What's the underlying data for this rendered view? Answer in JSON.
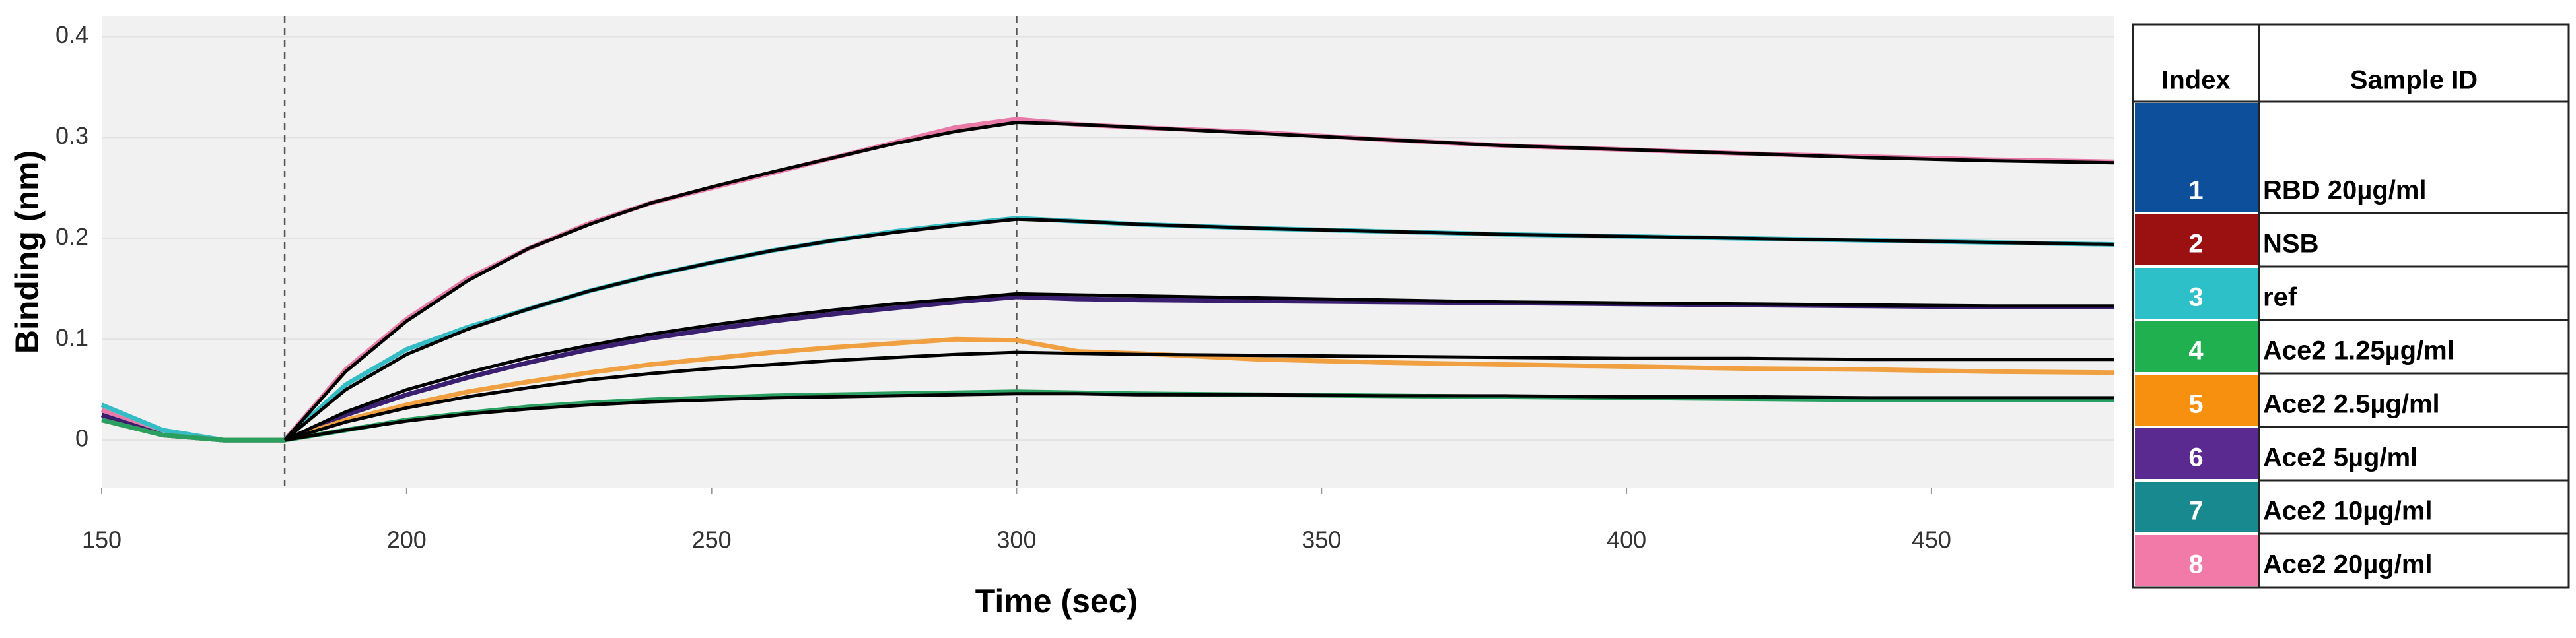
{
  "chart_data": {
    "type": "line",
    "x_label": "Time (sec)",
    "y_label": "Binding (nm)",
    "x": [
      150,
      160,
      170,
      180,
      190,
      200,
      210,
      220,
      230,
      240,
      250,
      260,
      270,
      280,
      290,
      300,
      310,
      320,
      340,
      360,
      380,
      400,
      420,
      440,
      460,
      480
    ],
    "xlim": [
      150,
      480
    ],
    "xticks": [
      150,
      200,
      250,
      300,
      350,
      400,
      450
    ],
    "ylim": [
      -0.047,
      0.42
    ],
    "yticks": [
      0,
      0.1,
      0.2,
      0.3,
      0.4
    ],
    "grid": true,
    "x_markers": [
      180,
      300
    ],
    "series": [
      {
        "color": "#e87aa8",
        "values": [
          0.03,
          0.005,
          0,
          0,
          0.07,
          0.12,
          0.16,
          0.19,
          0.215,
          0.235,
          0.25,
          0.265,
          0.28,
          0.295,
          0.31,
          0.318,
          0.313,
          0.31,
          0.305,
          0.298,
          0.292,
          0.288,
          0.284,
          0.281,
          0.278,
          0.276
        ]
      },
      {
        "color": "#35bcc4",
        "values": [
          0.035,
          0.01,
          0,
          0,
          0.055,
          0.09,
          0.112,
          0.13,
          0.148,
          0.163,
          0.176,
          0.188,
          0.198,
          0.207,
          0.214,
          0.22,
          0.217,
          0.214,
          0.21,
          0.207,
          0.204,
          0.202,
          0.2,
          0.198,
          0.196,
          0.194
        ]
      },
      {
        "color": "#3a1f70",
        "values": [
          0.025,
          0.005,
          0,
          0,
          0.025,
          0.045,
          0.062,
          0.077,
          0.09,
          0.101,
          0.11,
          0.118,
          0.125,
          0.131,
          0.137,
          0.142,
          0.14,
          0.139,
          0.138,
          0.137,
          0.136,
          0.135,
          0.134,
          0.133,
          0.132,
          0.132
        ]
      },
      {
        "color": "#f0a040",
        "values": [
          0.02,
          0.005,
          0,
          0,
          0.02,
          0.035,
          0.048,
          0.058,
          0.067,
          0.075,
          0.081,
          0.087,
          0.092,
          0.096,
          0.1,
          0.099,
          0.088,
          0.086,
          0.08,
          0.077,
          0.075,
          0.073,
          0.071,
          0.07,
          0.068,
          0.067
        ]
      },
      {
        "color": "#2aa060",
        "values": [
          0.02,
          0.005,
          0,
          0,
          0.01,
          0.02,
          0.027,
          0.033,
          0.037,
          0.04,
          0.042,
          0.044,
          0.045,
          0.046,
          0.047,
          0.048,
          0.047,
          0.046,
          0.045,
          0.044,
          0.043,
          0.042,
          0.041,
          0.04,
          0.04,
          0.04
        ]
      },
      {
        "color": "#000000",
        "values": [
          null,
          null,
          null,
          0,
          0.068,
          0.118,
          0.158,
          0.19,
          0.214,
          0.235,
          0.251,
          0.266,
          0.28,
          0.294,
          0.306,
          0.315,
          0.313,
          0.31,
          0.304,
          0.298,
          0.292,
          0.288,
          0.284,
          0.28,
          0.277,
          0.275
        ]
      },
      {
        "color": "#000000",
        "values": [
          null,
          null,
          null,
          0,
          0.05,
          0.085,
          0.11,
          0.13,
          0.148,
          0.163,
          0.176,
          0.188,
          0.198,
          0.206,
          0.213,
          0.219,
          0.217,
          0.214,
          0.21,
          0.207,
          0.204,
          0.202,
          0.2,
          0.198,
          0.196,
          0.194
        ]
      },
      {
        "color": "#000000",
        "values": [
          null,
          null,
          null,
          0,
          0.028,
          0.05,
          0.067,
          0.082,
          0.094,
          0.105,
          0.114,
          0.122,
          0.129,
          0.135,
          0.14,
          0.145,
          0.144,
          0.143,
          0.141,
          0.139,
          0.137,
          0.136,
          0.135,
          0.134,
          0.133,
          0.133
        ]
      },
      {
        "color": "#000000",
        "values": [
          null,
          null,
          null,
          0,
          0.018,
          0.032,
          0.043,
          0.052,
          0.06,
          0.066,
          0.071,
          0.075,
          0.079,
          0.082,
          0.085,
          0.087,
          0.086,
          0.085,
          0.084,
          0.083,
          0.082,
          0.081,
          0.081,
          0.08,
          0.08,
          0.08
        ]
      },
      {
        "color": "#000000",
        "values": [
          null,
          null,
          null,
          0,
          0.01,
          0.019,
          0.026,
          0.031,
          0.035,
          0.038,
          0.04,
          0.042,
          0.043,
          0.044,
          0.045,
          0.046,
          0.046,
          0.045,
          0.045,
          0.044,
          0.044,
          0.043,
          0.043,
          0.042,
          0.042,
          0.042
        ]
      }
    ]
  },
  "legend_table": {
    "header": [
      "Index",
      "Sample ID"
    ],
    "rows": [
      {
        "index": "1",
        "sample": "RBD 20µg/ml",
        "color": "#0d4f9a"
      },
      {
        "index": "2",
        "sample": "NSB",
        "color": "#9b1010"
      },
      {
        "index": "3",
        "sample": "ref",
        "color": "#2ec0c8"
      },
      {
        "index": "4",
        "sample": "Ace2 1.25µg/ml",
        "color": "#20b050"
      },
      {
        "index": "5",
        "sample": "Ace2 2.5µg/ml",
        "color": "#f7900f"
      },
      {
        "index": "6",
        "sample": "Ace2 5µg/ml",
        "color": "#5a2a90"
      },
      {
        "index": "7",
        "sample": "Ace2 10µg/ml",
        "color": "#17898f"
      },
      {
        "index": "8",
        "sample": "Ace2 20µg/ml",
        "color": "#f27aa8"
      }
    ]
  }
}
